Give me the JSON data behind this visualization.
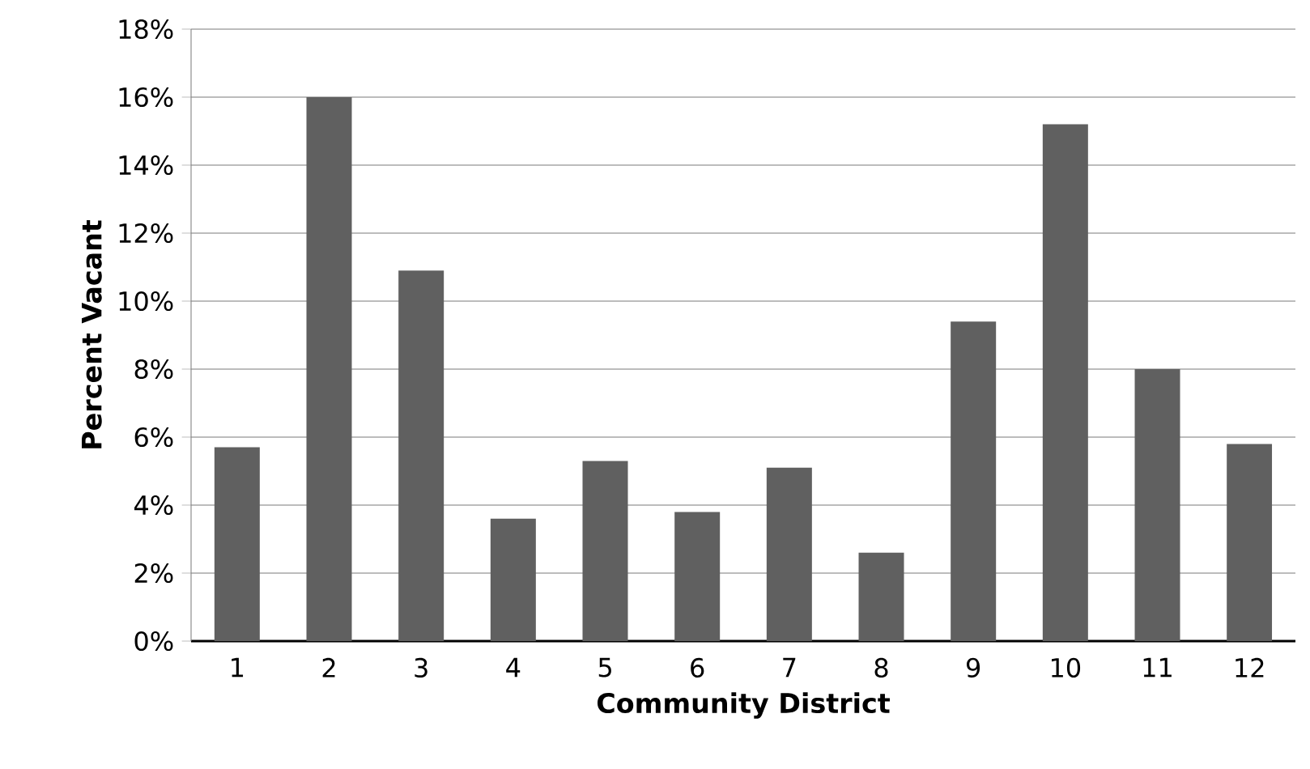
{
  "chart_data": {
    "type": "bar",
    "xlabel": "Community District",
    "ylabel": "Percent Vacant",
    "categories": [
      "1",
      "2",
      "3",
      "4",
      "5",
      "6",
      "7",
      "8",
      "9",
      "10",
      "11",
      "12"
    ],
    "values": [
      5.7,
      16.0,
      10.9,
      3.6,
      5.3,
      3.8,
      5.1,
      2.6,
      9.4,
      15.2,
      8.0,
      5.8
    ],
    "color": "#606060",
    "ylim": [
      0,
      18
    ],
    "yticks": [
      {
        "value": 0,
        "label": "0%"
      },
      {
        "value": 2,
        "label": "2%"
      },
      {
        "value": 4,
        "label": "4%"
      },
      {
        "value": 6,
        "label": "6%"
      },
      {
        "value": 8,
        "label": "8%"
      },
      {
        "value": 10,
        "label": "10%"
      },
      {
        "value": 12,
        "label": "12%"
      },
      {
        "value": 14,
        "label": "14%"
      },
      {
        "value": 16,
        "label": "16%"
      },
      {
        "value": 18,
        "label": "18%"
      }
    ],
    "grid": "y"
  }
}
